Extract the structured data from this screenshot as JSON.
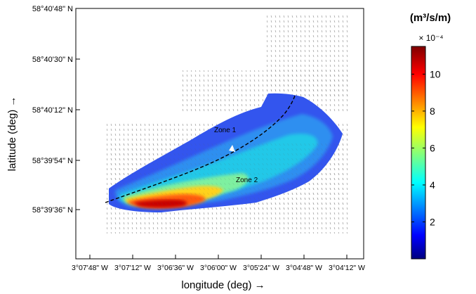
{
  "chart_data": {
    "type": "heatmap",
    "xlabel": "longitude (deg) →",
    "ylabel": "latitude (deg) →",
    "x_ticks": [
      "3°07'48\" W",
      "3°07'12\" W",
      "3°06'36\" W",
      "3°06'00\" W",
      "3°05'24\" W",
      "3°04'48\" W",
      "3°04'12\" W"
    ],
    "y_ticks": [
      "58°40'48\" N",
      "58°40'30\" N",
      "58°40'12\" N",
      "58°39'54\" N",
      "58°39'36\" N"
    ],
    "colorbar": {
      "unit_label": "(m³/s/m)",
      "multiplier": "× 10⁻⁴",
      "ticks": [
        2,
        4,
        6,
        8,
        10
      ],
      "range": [
        0,
        11.5
      ],
      "colormap": "jet"
    },
    "annotations": [
      "Zone 1",
      "Zone 2"
    ],
    "grid": false,
    "legend": "colorbar-right"
  }
}
